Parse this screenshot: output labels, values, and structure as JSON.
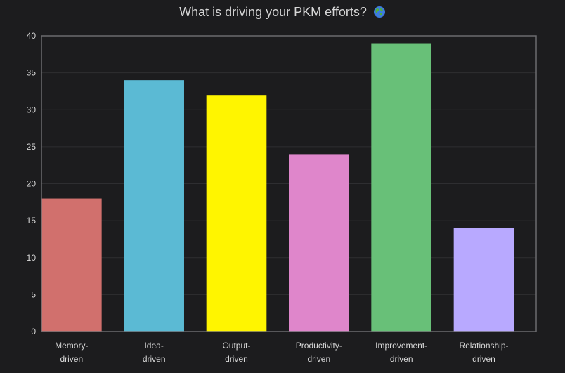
{
  "chart_data": {
    "type": "bar",
    "title": "What is driving your PKM efforts?",
    "title_icon": "globe-icon",
    "categories": [
      [
        "Memory-",
        "driven"
      ],
      [
        "Idea-",
        "driven"
      ],
      [
        "Output-",
        "driven"
      ],
      [
        "Productivity-",
        "driven"
      ],
      [
        "Improvement-",
        "driven"
      ],
      [
        "Relationship-",
        "driven"
      ]
    ],
    "values": [
      18,
      34,
      32,
      24,
      39,
      14
    ],
    "colors": [
      "#d1706d",
      "#5bbad4",
      "#fff500",
      "#df86cb",
      "#68c078",
      "#b8a9ff"
    ],
    "xlabel": "",
    "ylabel": "",
    "ylim": [
      0,
      40
    ],
    "yticks": [
      0,
      5,
      10,
      15,
      20,
      25,
      30,
      35,
      40
    ],
    "grid": true,
    "legend": "none"
  }
}
